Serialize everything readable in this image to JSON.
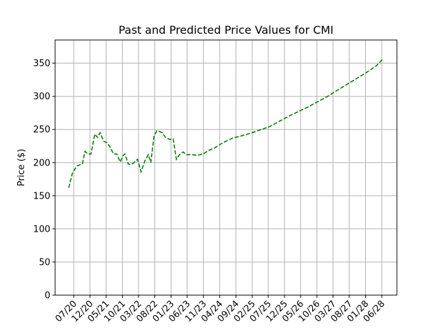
{
  "chart_data": {
    "type": "line",
    "title": "Past and Predicted Price Values for CMI",
    "xlabel": "",
    "ylabel": "Price ($)",
    "ylim": [
      0,
      385
    ],
    "grid": true,
    "legend": "none",
    "x_tick_labels": [
      "07/20",
      "12/20",
      "05/21",
      "10/21",
      "03/22",
      "08/22",
      "01/23",
      "06/23",
      "11/23",
      "04/24",
      "09/24",
      "02/25",
      "07/25",
      "12/25",
      "05/26",
      "10/26",
      "03/27",
      "08/27",
      "01/28",
      "06/28"
    ],
    "y_ticks": [
      0,
      50,
      100,
      150,
      200,
      250,
      300,
      350
    ],
    "x_start": "2020-05-15",
    "x_end": "2028-06-15",
    "series": [
      {
        "name": "",
        "color": "#008000",
        "style": "dashed",
        "x": [
          "2020-05-15",
          "2020-06-20",
          "2020-08-01",
          "2020-09-20",
          "2020-10-15",
          "2020-11-10",
          "2020-12-10",
          "2021-01-15",
          "2021-02-10",
          "2021-03-05",
          "2021-04-10",
          "2021-05-10",
          "2021-06-05",
          "2021-07-10",
          "2021-08-10",
          "2021-09-10",
          "2021-10-05",
          "2021-10-25",
          "2021-11-25",
          "2021-12-20",
          "2022-01-10",
          "2022-02-20",
          "2022-03-25",
          "2022-05-01",
          "2022-06-01",
          "2022-06-25",
          "2022-07-25",
          "2022-08-20",
          "2022-09-15",
          "2022-10-10",
          "2022-11-10",
          "2022-12-20",
          "2023-01-20",
          "2023-02-20",
          "2023-03-20",
          "2023-04-25",
          "2023-05-25",
          "2023-07-15",
          "2023-09-10",
          "2023-11-10",
          "2023-12-15",
          "2024-02-15",
          "2024-05-01",
          "2024-08-01",
          "2024-10-15",
          "2025-01-10",
          "2025-04-10",
          "2025-07-10",
          "2025-10-10",
          "2026-01-10",
          "2026-04-10",
          "2026-07-10",
          "2026-10-10",
          "2027-01-10",
          "2027-04-10",
          "2027-07-10",
          "2027-10-10",
          "2028-01-10",
          "2028-04-10",
          "2028-06-15"
        ],
        "y": [
          162,
          185,
          195,
          198,
          217,
          213,
          213,
          243,
          238,
          245,
          232,
          230,
          224,
          213,
          213,
          201,
          210,
          213,
          198,
          197,
          199,
          205,
          186,
          203,
          212,
          200,
          240,
          248,
          247,
          245,
          238,
          235,
          236,
          205,
          212,
          216,
          212,
          212,
          211,
          214,
          218,
          222,
          230,
          237,
          240,
          244,
          249,
          254,
          262,
          270,
          277,
          284,
          292,
          300,
          309,
          318,
          327,
          336,
          346,
          357
        ]
      }
    ]
  }
}
